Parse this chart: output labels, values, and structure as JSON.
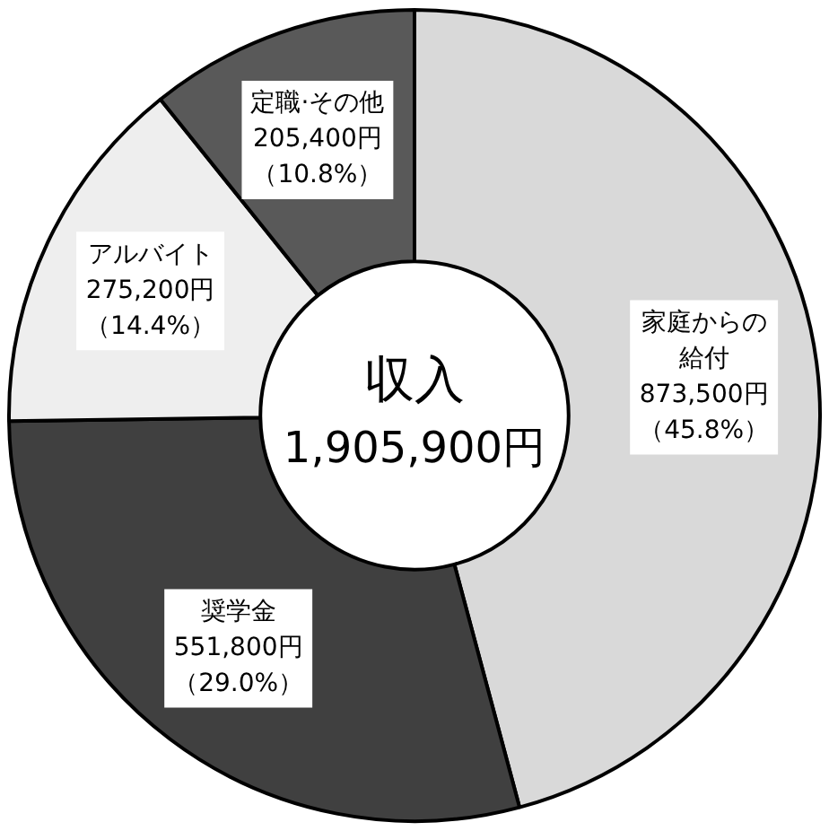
{
  "chart_data": {
    "type": "donut",
    "title": "収入",
    "subtitle": "1,905,900円",
    "categories": [
      "家庭からの給付",
      "奨学金",
      "アルバイト",
      "定職·その他"
    ],
    "values": [
      873500,
      551800,
      275200,
      205400
    ],
    "value_labels": [
      "873,500円（45.8%）",
      "551,800円（29.0%）",
      "275,200円（14.4%）",
      "205,400円（10.8%）"
    ],
    "colors": [
      "#d9d9d9",
      "#404040",
      "#eeeeee",
      "#595959"
    ],
    "legend": false
  }
}
